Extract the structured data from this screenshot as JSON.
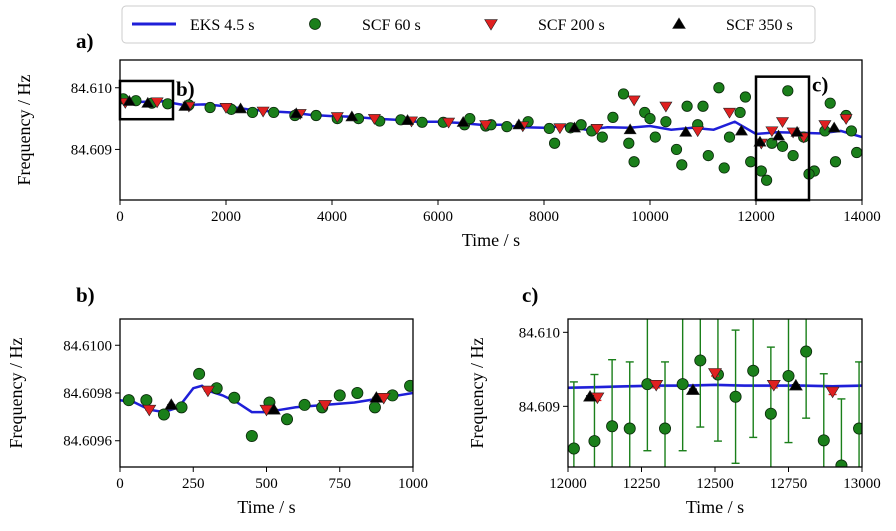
{
  "figure": {
    "legend": [
      {
        "label": "EKS 4.5 s",
        "marker": "line",
        "color": "#1f1fd8"
      },
      {
        "label": "SCF 60 s",
        "marker": "circle",
        "color": "#1a7f1a"
      },
      {
        "label": "SCF 200 s",
        "marker": "triangle-down",
        "color": "#e02020"
      },
      {
        "label": "SCF 350 s",
        "marker": "triangle-up",
        "color": "#000000"
      }
    ]
  },
  "chart_data": [
    {
      "type": "scatter",
      "panel_label": "a)",
      "xlabel": "Time / s",
      "ylabel": "Frequency / Hz",
      "xlim": [
        0,
        14000
      ],
      "ylim": [
        84.60818,
        84.61045
      ],
      "x_ticks": [
        0,
        2000,
        4000,
        6000,
        8000,
        10000,
        12000,
        14000
      ],
      "y_ticks": [
        84.609,
        84.61
      ],
      "y_tick_labels": [
        "84.609",
        "84.610"
      ],
      "inset_boxes": [
        {
          "label": "b)",
          "x": [
            0,
            1000
          ],
          "y": [
            84.60949,
            84.61011
          ]
        },
        {
          "label": "c)",
          "x": [
            12000,
            13000
          ],
          "y": [
            84.60818,
            84.61018
          ]
        }
      ],
      "series": [
        {
          "name": "EKS 4.5 s",
          "kind": "line",
          "x": [
            0,
            400,
            800,
            1200,
            1600,
            2000,
            2400,
            2800,
            3200,
            3600,
            4000,
            4400,
            4800,
            5200,
            5600,
            6000,
            6400,
            6800,
            7200,
            7600,
            8000,
            8400,
            8800,
            9200,
            9600,
            10000,
            10400,
            10800,
            11200,
            11600,
            12000,
            12400,
            12800,
            13200,
            13600,
            14000
          ],
          "y": [
            84.60981,
            84.60977,
            84.60978,
            84.60972,
            84.60973,
            84.6097,
            84.60965,
            84.60962,
            84.6096,
            84.60956,
            84.60954,
            84.60953,
            84.6095,
            84.60948,
            84.60945,
            84.60945,
            84.60943,
            84.6094,
            84.6094,
            84.60936,
            84.60935,
            84.60938,
            84.60932,
            84.60936,
            84.60935,
            84.60938,
            84.60932,
            84.60935,
            84.60932,
            84.60945,
            84.60925,
            84.60928,
            84.60927,
            84.60926,
            84.6093,
            84.6092
          ]
        },
        {
          "name": "SCF 60 s",
          "kind": "circle",
          "x": [
            60,
            300,
            600,
            900,
            1300,
            1700,
            2100,
            2500,
            2900,
            3300,
            3700,
            4100,
            4500,
            4900,
            5300,
            5700,
            6100,
            6500,
            6900,
            7300,
            7700,
            8100,
            8500,
            8900,
            9300,
            9500,
            9700,
            9900,
            10100,
            10300,
            10500,
            10700,
            10900,
            11100,
            11300,
            11500,
            11700,
            11900,
            12100,
            12300,
            12500,
            12700,
            12900,
            13100,
            13300,
            13500,
            13700,
            13900,
            9600,
            10000,
            10600,
            11000,
            11400,
            11800,
            12200,
            12600,
            13000,
            13400,
            13800,
            8200,
            8700,
            9100,
            7000,
            6600
          ],
          "y": [
            84.60982,
            84.60979,
            84.60975,
            84.60974,
            84.60972,
            84.60968,
            84.60965,
            84.6096,
            84.6096,
            84.60955,
            84.60955,
            84.6095,
            84.6095,
            84.60946,
            84.60948,
            84.60944,
            84.60944,
            84.6094,
            84.60938,
            84.60937,
            84.60945,
            84.60934,
            84.60935,
            84.6093,
            84.60952,
            84.6099,
            84.6088,
            84.6096,
            84.6092,
            84.60945,
            84.609,
            84.6097,
            84.6094,
            84.6089,
            84.61,
            84.6092,
            84.6096,
            84.6088,
            84.60865,
            84.6091,
            84.60905,
            84.6089,
            84.6092,
            84.60865,
            84.6093,
            84.6088,
            84.60955,
            84.60895,
            84.6091,
            84.6095,
            84.60875,
            84.6097,
            84.6087,
            84.60985,
            84.6085,
            84.60995,
            84.6086,
            84.60975,
            84.6093,
            84.6091,
            84.6094,
            84.6092,
            84.6094,
            84.6095
          ]
        },
        {
          "name": "SCF 200 s",
          "kind": "triangle-down",
          "x": [
            100,
            700,
            1300,
            2000,
            2700,
            3400,
            4100,
            4800,
            5500,
            6200,
            6900,
            7600,
            8300,
            9000,
            9700,
            10300,
            10900,
            11500,
            12100,
            12300,
            12500,
            12700,
            12900,
            13300,
            13700
          ],
          "y": [
            84.60976,
            84.60977,
            84.6097,
            84.60968,
            84.60962,
            84.60958,
            84.60953,
            84.6095,
            84.60946,
            84.60944,
            84.6094,
            84.60938,
            84.60935,
            84.60934,
            84.6098,
            84.6097,
            84.6093,
            84.6096,
            84.6091,
            84.6093,
            84.60945,
            84.60928,
            84.6092,
            84.6094,
            84.6095
          ]
        },
        {
          "name": "SCF 350 s",
          "kind": "triangle-up",
          "x": [
            175,
            525,
            1225,
            2275,
            3325,
            4375,
            5425,
            6475,
            7525,
            8575,
            9625,
            10675,
            11725,
            12075,
            12425,
            12775,
            13475
          ],
          "y": [
            84.60978,
            84.60975,
            84.6097,
            84.60966,
            84.60958,
            84.60953,
            84.60947,
            84.60944,
            84.6094,
            84.60935,
            84.60932,
            84.60928,
            84.6093,
            84.60912,
            84.60922,
            84.60928,
            84.60935
          ]
        }
      ]
    },
    {
      "type": "scatter",
      "panel_label": "b)",
      "xlabel": "Time / s",
      "ylabel": "Frequency / Hz",
      "xlim": [
        0,
        1000
      ],
      "ylim": [
        84.60949,
        84.61011
      ],
      "x_ticks": [
        0,
        250,
        500,
        750,
        1000
      ],
      "y_ticks": [
        84.6096,
        84.6098,
        84.61
      ],
      "y_tick_labels": [
        "84.6096",
        "84.6098",
        "84.6100"
      ],
      "band_halfwidth": 4e-06,
      "series": [
        {
          "name": "EKS 4.5 s",
          "kind": "line",
          "x": [
            0,
            50,
            100,
            150,
            200,
            250,
            280,
            300,
            350,
            400,
            450,
            500,
            550,
            600,
            700,
            800,
            900,
            1000
          ],
          "y": [
            84.60977,
            84.60976,
            84.60973,
            84.60972,
            84.60974,
            84.60982,
            84.60983,
            84.60981,
            84.60979,
            84.60976,
            84.60972,
            84.60972,
            84.60973,
            84.60974,
            84.60975,
            84.60976,
            84.60978,
            84.6098
          ]
        },
        {
          "name": "SCF 60 s",
          "kind": "circle",
          "err": 3e-06,
          "x": [
            30,
            90,
            150,
            210,
            270,
            330,
            390,
            450,
            510,
            570,
            630,
            690,
            750,
            810,
            870,
            930,
            990
          ],
          "y": [
            84.60977,
            84.60977,
            84.60971,
            84.60974,
            84.60988,
            84.60982,
            84.60978,
            84.60962,
            84.60976,
            84.60969,
            84.60975,
            84.60974,
            84.60979,
            84.6098,
            84.60974,
            84.60979,
            84.60983
          ]
        },
        {
          "name": "SCF 200 s",
          "kind": "triangle-down",
          "err": 1.5e-06,
          "x": [
            100,
            300,
            500,
            700,
            900
          ],
          "y": [
            84.60973,
            84.60981,
            84.60973,
            84.60975,
            84.60978
          ]
        },
        {
          "name": "SCF 350 s",
          "kind": "triangle-up",
          "err": 1.2e-06,
          "x": [
            175,
            525,
            875
          ],
          "y": [
            84.60975,
            84.60973,
            84.60978
          ]
        }
      ]
    },
    {
      "type": "scatter",
      "panel_label": "c)",
      "xlabel": "Time / s",
      "ylabel": "Frequency / Hz",
      "xlim": [
        12000,
        13000
      ],
      "ylim": [
        84.60818,
        84.61018
      ],
      "x_ticks": [
        12000,
        12250,
        12500,
        12750,
        13000
      ],
      "y_ticks": [
        84.609,
        84.61
      ],
      "y_tick_labels": [
        "84.609",
        "84.610"
      ],
      "band_halfwidth": 2e-05,
      "series": [
        {
          "name": "EKS 4.5 s",
          "kind": "line",
          "x": [
            12000,
            12100,
            12200,
            12300,
            12400,
            12500,
            12600,
            12700,
            12800,
            12900,
            13000
          ],
          "y": [
            84.60925,
            84.60926,
            84.60927,
            84.60928,
            84.60928,
            84.60929,
            84.60928,
            84.60928,
            84.60928,
            84.60927,
            84.60928
          ]
        },
        {
          "name": "SCF 60 s",
          "kind": "circle",
          "err": 0.0009,
          "x": [
            12020,
            12090,
            12150,
            12210,
            12270,
            12330,
            12390,
            12450,
            12510,
            12570,
            12630,
            12690,
            12750,
            12810,
            12870,
            12930,
            12990
          ],
          "y": [
            84.60843,
            84.60853,
            84.60873,
            84.6087,
            84.6093,
            84.6087,
            84.6093,
            84.60962,
            84.60943,
            84.60913,
            84.60948,
            84.6089,
            84.60941,
            84.60974,
            84.60854,
            84.6082,
            84.6087
          ]
        },
        {
          "name": "SCF 200 s",
          "kind": "triangle-down",
          "err": 4e-05,
          "x": [
            12100,
            12300,
            12500,
            12700,
            12900
          ],
          "y": [
            84.60912,
            84.60929,
            84.60945,
            84.60929,
            84.6092
          ]
        },
        {
          "name": "SCF 350 s",
          "kind": "triangle-up",
          "err": 1.2e-05,
          "x": [
            12075,
            12425,
            12775
          ],
          "y": [
            84.60913,
            84.60922,
            84.60928
          ]
        }
      ]
    }
  ]
}
